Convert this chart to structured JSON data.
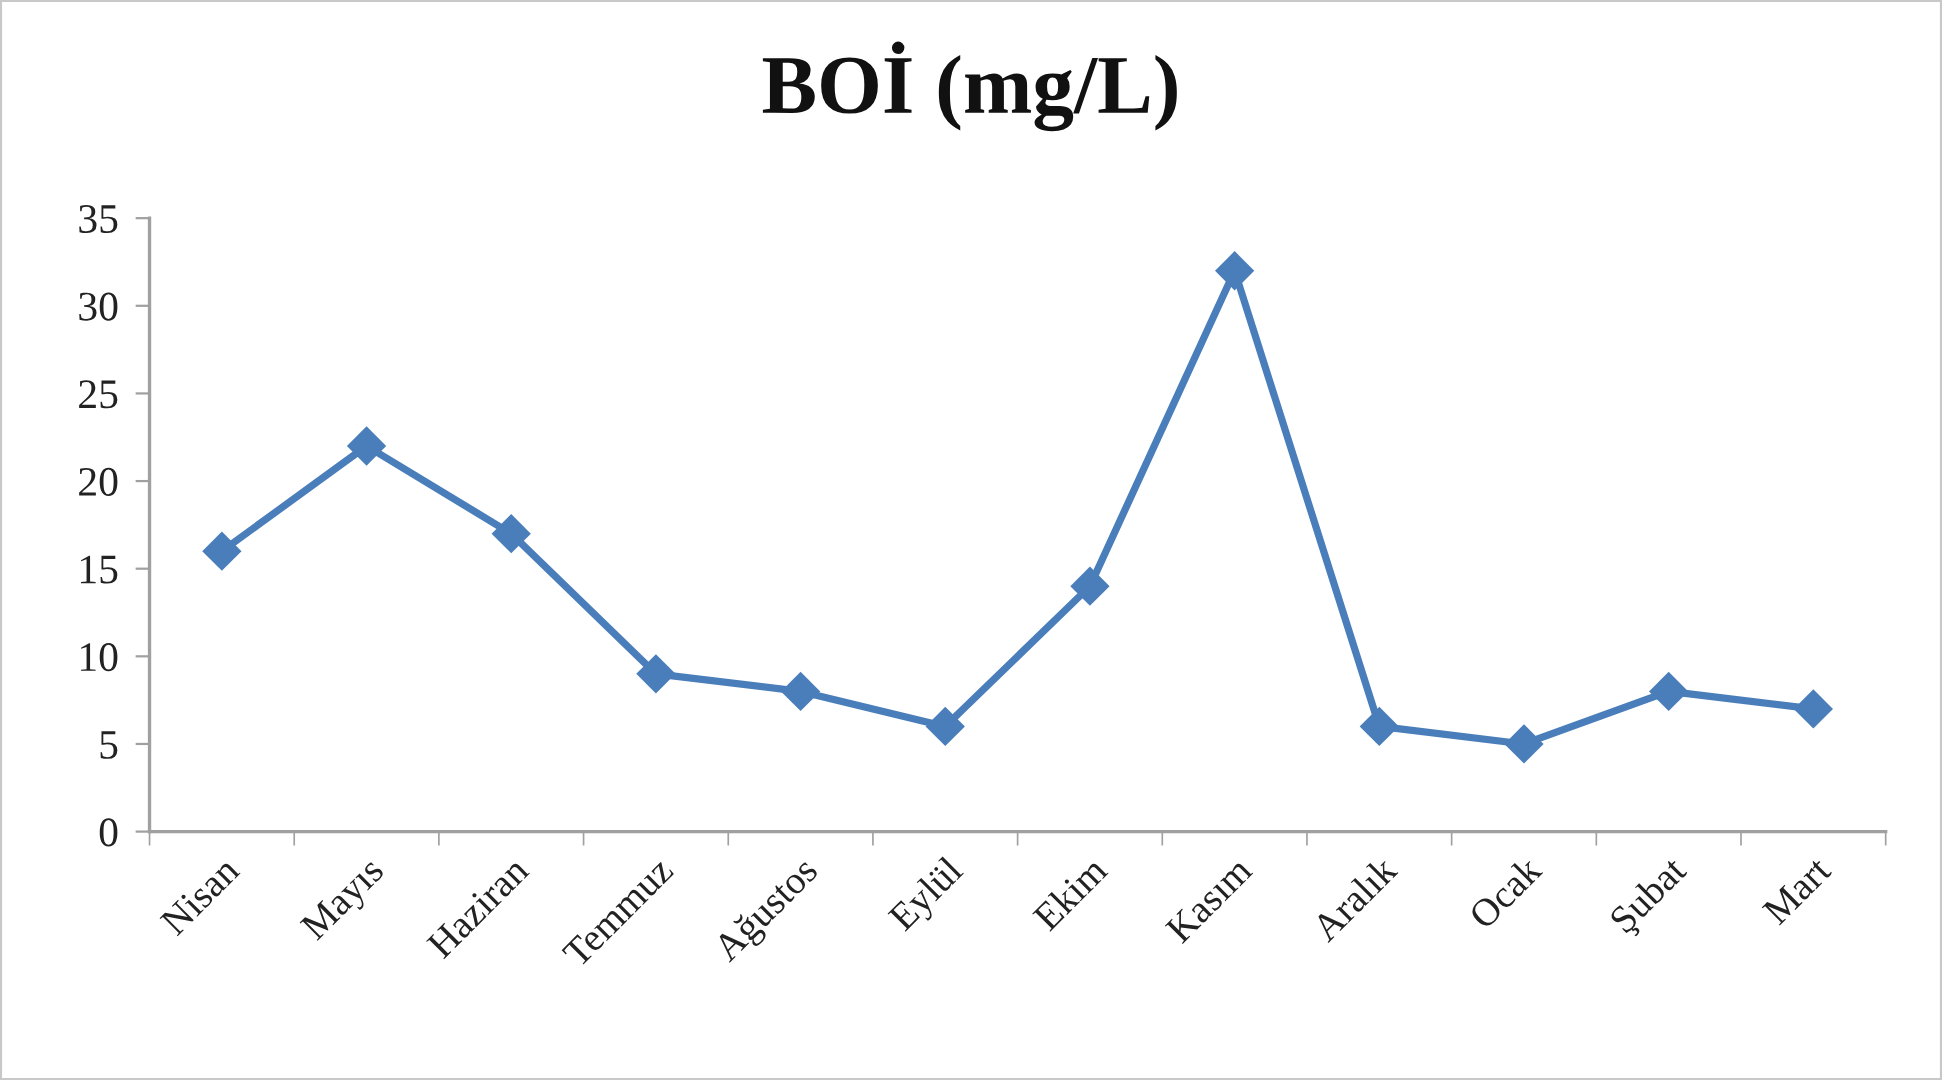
{
  "chart_data": {
    "type": "line",
    "title": "BOİ (mg/L)",
    "categories": [
      "Nisan",
      "Mayıs",
      "Haziran",
      "Temmuz",
      "Ağustos",
      "Eylül",
      "Ekim",
      "Kasım",
      "Aralık",
      "Ocak",
      "Şubat",
      "Mart"
    ],
    "series": [
      {
        "color": "#4a7ebb",
        "values": [
          16,
          22,
          17,
          9,
          8,
          6,
          14,
          32,
          6,
          5,
          8,
          7
        ]
      }
    ],
    "ylim": [
      0,
      35
    ],
    "yticks": [
      0,
      5,
      10,
      15,
      20,
      25,
      30,
      35
    ],
    "grid": false,
    "marker": "diamond",
    "line_style": "solid"
  }
}
